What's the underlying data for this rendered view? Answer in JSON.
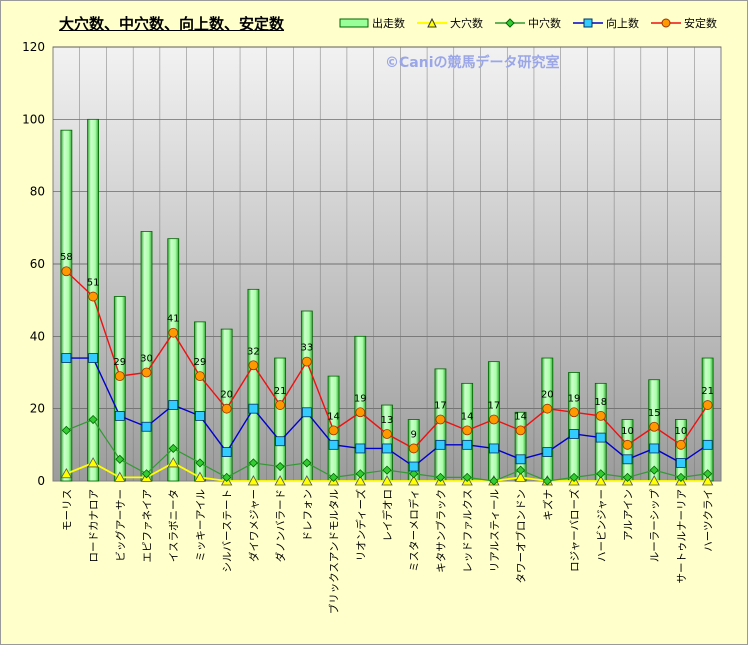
{
  "chart_data": {
    "type": "bar",
    "title": "大穴数、中穴数、向上数、安定数",
    "watermark": "©Caniの競馬データ研究室",
    "ylim": [
      0,
      120
    ],
    "yticks": [
      0,
      20,
      40,
      60,
      80,
      100,
      120
    ],
    "grid": true,
    "legend_position": "top",
    "categories": [
      "モーリス",
      "ロードカナロア",
      "ビッグアーサー",
      "エピファネイア",
      "イスラボニータ",
      "ミッキーアイル",
      "シルバーステート",
      "ダイワメジャー",
      "ダノンバラード",
      "ドレフォン",
      "ブリックスアンドモルタル",
      "リオンディーズ",
      "レイデオロ",
      "ミスターメロディ",
      "キタサンブラック",
      "レッドファルクス",
      "リアルスティール",
      "タワーオブロンドン",
      "キズナ",
      "ロジャーバローズ",
      "ハービンジャー",
      "アルアイン",
      "ルーラーシップ",
      "サートゥルナーリア",
      "ハーツクライ"
    ],
    "series": [
      {
        "name": "出走数",
        "type": "bar",
        "color": "#99ff99",
        "values": [
          97,
          100,
          51,
          69,
          67,
          44,
          42,
          53,
          34,
          47,
          29,
          40,
          21,
          17,
          31,
          27,
          33,
          19,
          34,
          30,
          27,
          17,
          28,
          17,
          34
        ]
      },
      {
        "name": "大穴数",
        "type": "line",
        "color": "#ffff00",
        "values": [
          2,
          5,
          1,
          1,
          5,
          1,
          0,
          0,
          0,
          0,
          0,
          0,
          0,
          0,
          0,
          0,
          0,
          1,
          0,
          0,
          0,
          0,
          0,
          0,
          0
        ]
      },
      {
        "name": "中穴数",
        "type": "line",
        "color": "#339933",
        "values": [
          14,
          17,
          6,
          2,
          9,
          5,
          1,
          5,
          4,
          5,
          1,
          2,
          3,
          2,
          1,
          1,
          0,
          3,
          0,
          1,
          2,
          1,
          3,
          1,
          2
        ]
      },
      {
        "name": "向上数",
        "type": "line",
        "color": "#0000cc",
        "values": [
          34,
          34,
          18,
          15,
          21,
          18,
          8,
          20,
          11,
          19,
          10,
          9,
          9,
          4,
          10,
          10,
          9,
          6,
          8,
          13,
          12,
          6,
          9,
          5,
          10
        ]
      },
      {
        "name": "安定数",
        "type": "line",
        "color": "#ee1111",
        "values": [
          58,
          51,
          29,
          30,
          41,
          29,
          20,
          32,
          21,
          33,
          14,
          19,
          13,
          9,
          17,
          14,
          17,
          14,
          20,
          19,
          18,
          10,
          15,
          10,
          21
        ]
      }
    ],
    "data_labels": {
      "series": "安定数",
      "values": [
        58,
        51,
        29,
        30,
        41,
        29,
        20,
        32,
        21,
        33,
        14,
        19,
        13,
        9,
        17,
        14,
        17,
        14,
        20,
        19,
        18,
        10,
        15,
        10,
        21
      ]
    }
  }
}
